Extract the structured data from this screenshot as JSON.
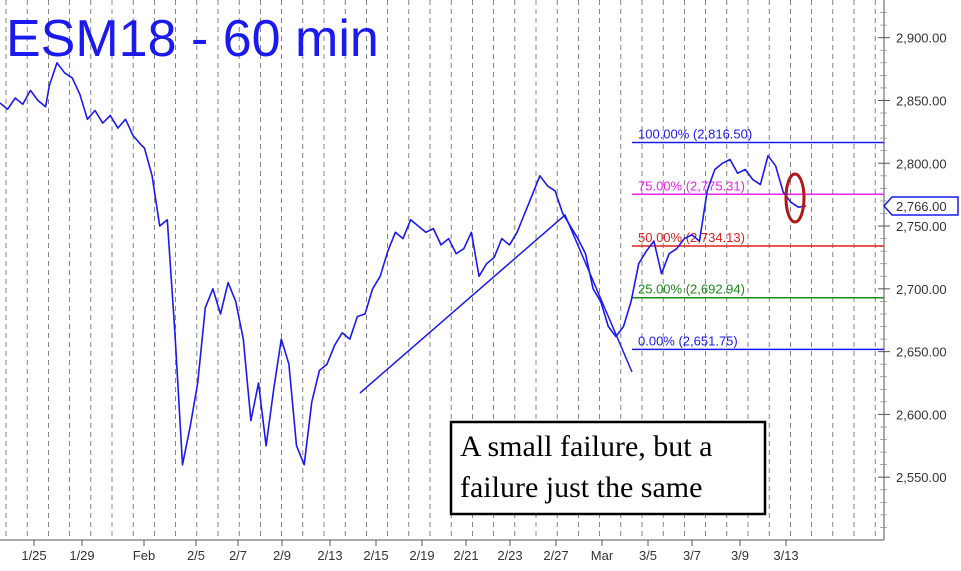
{
  "chart_data": {
    "type": "line",
    "title": "ESM18 - 60 min",
    "ylim": [
      2500,
      2930
    ],
    "y_ticks": [
      2550,
      2600,
      2650,
      2700,
      2750,
      2800,
      2850,
      2900
    ],
    "y_tick_labels": [
      "2,550.00",
      "2,600.00",
      "2,650.00",
      "2,700.00",
      "2,750.00",
      "2,800.00",
      "2,850.00",
      "2,900.00"
    ],
    "x_labels": [
      "1/25",
      "1/29",
      "Feb",
      "2/5",
      "2/7",
      "2/9",
      "2/13",
      "2/15",
      "2/19",
      "2/21",
      "2/23",
      "2/27",
      "Mar",
      "3/5",
      "3/7",
      "3/9",
      "3/13"
    ],
    "last_price": 2766,
    "last_price_label": "2,766.00",
    "grid": true,
    "series": [
      {
        "color": "#1a1aee",
        "x": [
          0,
          2,
          4,
          6,
          8,
          10,
          12,
          13,
          15,
          17,
          19,
          21,
          23,
          25,
          27,
          29,
          31,
          33,
          35,
          37,
          38,
          40,
          42,
          44,
          46,
          48,
          50,
          52,
          54,
          56,
          58,
          60,
          62,
          64,
          66,
          68,
          70,
          72,
          74,
          76,
          78,
          80,
          82,
          84,
          86,
          88,
          90,
          92,
          94,
          96,
          98,
          100,
          102,
          104,
          106,
          108,
          110,
          112,
          114,
          116,
          118,
          120,
          122,
          124,
          126,
          128,
          130,
          132,
          134,
          136,
          138,
          140,
          142,
          144,
          146,
          148,
          150,
          152,
          154,
          156,
          158,
          160,
          162,
          164,
          166,
          168,
          170,
          172,
          174,
          176,
          178,
          180,
          182,
          184,
          186,
          188,
          190,
          192,
          194,
          196,
          198,
          200,
          202,
          204,
          206,
          208,
          210,
          212
        ],
        "values": [
          2848,
          2843,
          2852,
          2847,
          2858,
          2850,
          2845,
          2862,
          2880,
          2872,
          2868,
          2855,
          2835,
          2842,
          2832,
          2838,
          2828,
          2835,
          2822,
          2815,
          2812,
          2790,
          2750,
          2755,
          2665,
          2560,
          2590,
          2625,
          2685,
          2700,
          2680,
          2705,
          2690,
          2660,
          2595,
          2625,
          2575,
          2620,
          2660,
          2640,
          2575,
          2560,
          2610,
          2635,
          2640,
          2655,
          2665,
          2660,
          2678,
          2680,
          2700,
          2710,
          2730,
          2745,
          2740,
          2755,
          2750,
          2745,
          2748,
          2735,
          2740,
          2728,
          2732,
          2745,
          2710,
          2720,
          2725,
          2740,
          2735,
          2745,
          2760,
          2775,
          2790,
          2782,
          2778,
          2760,
          2750,
          2740,
          2728,
          2700,
          2690,
          2670,
          2662,
          2670,
          2690,
          2720,
          2730,
          2738,
          2712,
          2728,
          2732,
          2740,
          2743,
          2738,
          2778,
          2795,
          2800,
          2803,
          2792,
          2795,
          2787,
          2783,
          2806,
          2798,
          2777,
          2769,
          2765,
          2766
        ]
      }
    ],
    "fib_levels": [
      {
        "label": "100.00% (2,816.50)",
        "value": 2816.5,
        "color": "#1a1aee"
      },
      {
        "label": "75.00% (2,775.31)",
        "value": 2775.31,
        "color": "#ee22ee"
      },
      {
        "label": "50.00% (2,734.13)",
        "value": 2734.13,
        "color": "#e0201b"
      },
      {
        "label": "25.00% (2,692.94)",
        "value": 2692.94,
        "color": "#1a8a1a"
      },
      {
        "label": "0.00% (2,651.75)",
        "value": 2651.75,
        "color": "#1a1aee"
      }
    ],
    "annotation": {
      "lines": [
        "A small failure, but a",
        "failure just the same"
      ]
    }
  }
}
